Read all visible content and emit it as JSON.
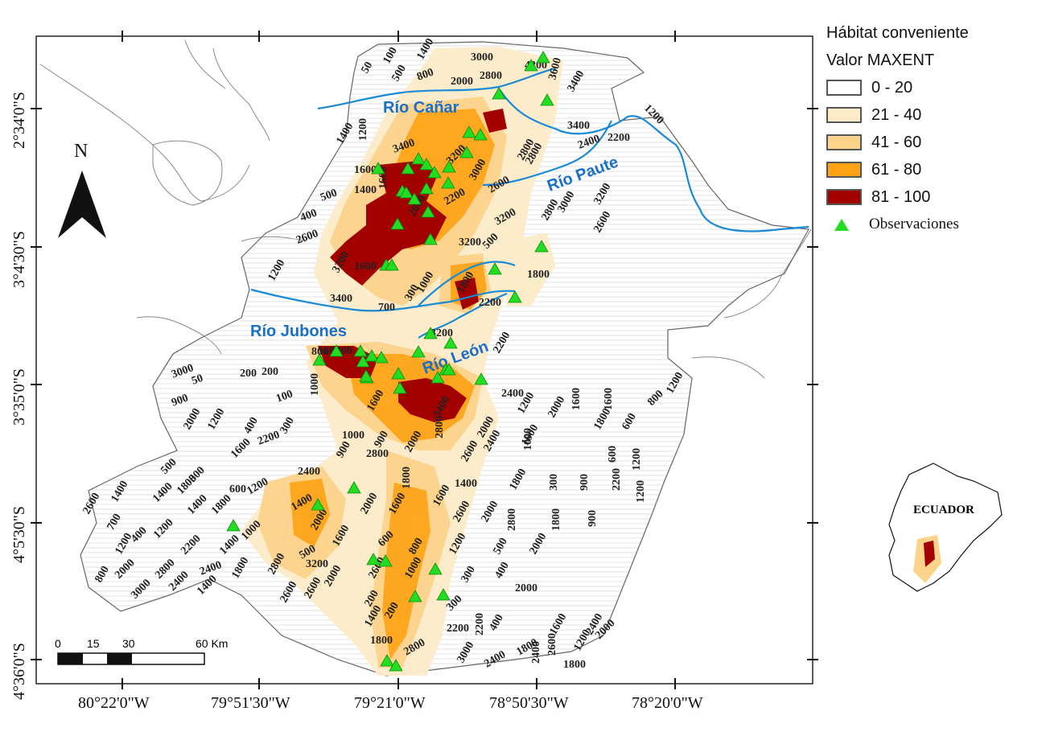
{
  "legend": {
    "title": "Hábitat conveniente",
    "subtitle": "Valor MAXENT",
    "classes": [
      {
        "label": "0 - 20",
        "color": "#ffffff"
      },
      {
        "label": "21 - 40",
        "color": "#fdebc8"
      },
      {
        "label": "41 - 60",
        "color": "#fdd38b"
      },
      {
        "label": "61 - 80",
        "color": "#fea316"
      },
      {
        "label": "81 - 100",
        "color": "#a30000"
      }
    ],
    "observations_label": "Observaciones",
    "observation_color": "#22dd22"
  },
  "north_arrow": {
    "label": "N"
  },
  "scale_bar": {
    "ticks": [
      "0",
      "15",
      "30",
      "60 Km"
    ]
  },
  "inset": {
    "label": "ECUADOR"
  },
  "lat_labels": [
    "2°34'0\"S",
    "3°4'30\"S",
    "3°35'0\"S",
    "4°5'30\"S",
    "4°36'0\"S"
  ],
  "lon_labels": [
    "80°22'0\"W",
    "79°51'30\"W",
    "79°21'0\"W",
    "78°50'30\"W",
    "78°20'0\"W"
  ],
  "rivers": {
    "canar": "Río Cañar",
    "paute": "Río Paute",
    "jubones": "Río Jubones",
    "leon": "Río León",
    "color": "#1a8ad6"
  },
  "contour_labels": [
    "50",
    "100",
    "1400",
    "3000",
    "4200",
    "500",
    "800",
    "2000",
    "2800",
    "3600",
    "3400",
    "1200",
    "1400",
    "1200",
    "3400",
    "3200",
    "2800",
    "3400",
    "2200",
    "2400",
    "1600",
    "2800",
    "2600",
    "3000",
    "1600",
    "1400",
    "3200",
    "3000",
    "500",
    "2200",
    "2800",
    "400",
    "2000",
    "3200",
    "3200",
    "2600",
    "2600",
    "500",
    "1600",
    "3200",
    "1200",
    "300",
    "1800",
    "3400",
    "700",
    "1000",
    "1800",
    "3200",
    "2200",
    "2200",
    "1600",
    "3000",
    "50",
    "200",
    "200",
    "800",
    "3000",
    "900",
    "100",
    "1000",
    "1600",
    "3400",
    "2400",
    "1200",
    "2000",
    "1600",
    "1600",
    "2000",
    "1200",
    "400",
    "300",
    "1000",
    "2800",
    "2600",
    "2400",
    "1000",
    "1800",
    "600",
    "800",
    "1200",
    "2200",
    "900",
    "900",
    "2000",
    "2000",
    "1600",
    "600",
    "1200",
    "500",
    "300",
    "1600",
    "2400",
    "2800",
    "1800",
    "1400",
    "1800",
    "300",
    "900",
    "2200",
    "1200",
    "2600",
    "1400",
    "1400",
    "1800",
    "600",
    "1200",
    "1400",
    "2000",
    "2000",
    "1600",
    "1600",
    "2600",
    "2000",
    "2800",
    "1800",
    "900",
    "700",
    "400",
    "1200",
    "1400",
    "1800",
    "1000",
    "500",
    "1600",
    "600",
    "800",
    "1200",
    "500",
    "2000",
    "1200",
    "2200",
    "1400",
    "2800",
    "3200",
    "2000",
    "2600",
    "1000",
    "300",
    "400",
    "800",
    "2000",
    "2800",
    "2400",
    "1800",
    "2600",
    "2600",
    "200",
    "200",
    "300",
    "400",
    "2000",
    "1600",
    "2400",
    "3000",
    "2400",
    "1400",
    "2200",
    "2200",
    "1800",
    "2600",
    "1200",
    "2000",
    "1800",
    "2800",
    "3000",
    "2400",
    "2400",
    "1800",
    "1400",
    "1200",
    "1200",
    "2000",
    "1200",
    "1400",
    "1800",
    "2000"
  ],
  "observation_points_count": 60
}
